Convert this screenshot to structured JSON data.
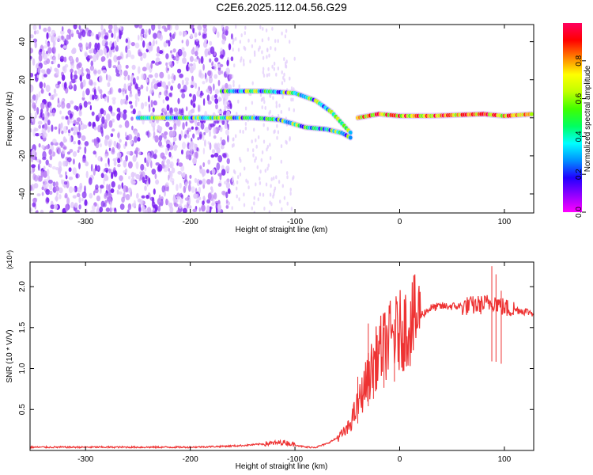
{
  "title": "C2E6.2025.112.04.56.G29",
  "chart_data": [
    {
      "type": "heatmap",
      "name": "spectrogram",
      "xlabel": "Height of straight line (km)",
      "ylabel": "Frequency (Hz)",
      "xlim": [
        -353,
        128
      ],
      "ylim": [
        -50,
        49
      ],
      "x_ticks": [
        -300,
        -200,
        -100,
        0,
        100
      ],
      "x_tick_labels": [
        "-300",
        "-200",
        "-100",
        "0",
        "100"
      ],
      "y_ticks": [
        -40,
        -20,
        0,
        20,
        40
      ],
      "y_tick_labels": [
        "-40",
        "-20",
        "0",
        "20",
        "40"
      ],
      "colorbar": {
        "label": "Normalized spectral amplitude",
        "range": [
          0,
          1
        ],
        "ticks": [
          0.0,
          0.2,
          0.4,
          0.6,
          0.8
        ],
        "tick_labels": [
          "0.0",
          "0.2",
          "0.4",
          "0.6",
          "0.8"
        ],
        "colors": [
          "#ff00ff",
          "#9000ff",
          "#2000ff",
          "#0090ff",
          "#00ffff",
          "#00ff60",
          "#40ff00",
          "#c0ff00",
          "#ffff00",
          "#ff8000",
          "#ff0000",
          "#ff0060"
        ]
      },
      "features": [
        {
          "name": "upper-branch",
          "points": [
            [
              -170,
              14
            ],
            [
              -130,
              14
            ],
            [
              -100,
              13
            ],
            [
              -80,
              9
            ],
            [
              -65,
              3
            ],
            [
              -55,
              -3
            ],
            [
              -45,
              -9
            ]
          ]
        },
        {
          "name": "lower-branch",
          "points": [
            [
              -250,
              0
            ],
            [
              -180,
              0
            ],
            [
              -140,
              0
            ],
            [
              -115,
              -1
            ],
            [
              -90,
              -5
            ],
            [
              -70,
              -6
            ],
            [
              -55,
              -8
            ],
            [
              -45,
              -11
            ]
          ]
        },
        {
          "name": "main-line",
          "points": [
            [
              -40,
              0
            ],
            [
              -20,
              2
            ],
            [
              0,
              1
            ],
            [
              30,
              1
            ],
            [
              80,
              2
            ],
            [
              100,
              1
            ],
            [
              128,
              2
            ]
          ]
        }
      ]
    },
    {
      "type": "line",
      "name": "snr",
      "xlabel": "Height of straight line (km)",
      "ylabel": "SNR (10 * V/V)",
      "y_multiplier": "(x10⁴)",
      "xlim": [
        -353,
        128
      ],
      "ylim": [
        0,
        2.3
      ],
      "x_ticks": [
        -300,
        -200,
        -100,
        0,
        100
      ],
      "x_tick_labels": [
        "-300",
        "-200",
        "-100",
        "0",
        "100"
      ],
      "y_ticks": [
        0.5,
        1.0,
        1.5,
        2.0
      ],
      "y_tick_labels": [
        "0.5",
        "1.0",
        "1.5",
        "2.0"
      ],
      "color": "#ee3333",
      "series": [
        {
          "name": "SNR",
          "x": [
            -353,
            -300,
            -250,
            -200,
            -170,
            -150,
            -130,
            -110,
            -100,
            -90,
            -80,
            -70,
            -60,
            -50,
            -40,
            -30,
            -20,
            -10,
            0,
            10,
            20,
            30,
            40,
            60,
            80,
            90,
            100,
            110,
            128
          ],
          "y": [
            0.04,
            0.04,
            0.04,
            0.04,
            0.05,
            0.06,
            0.08,
            0.1,
            0.07,
            0.04,
            0.04,
            0.08,
            0.15,
            0.25,
            0.55,
            0.9,
            1.2,
            1.35,
            1.45,
            1.55,
            1.65,
            1.74,
            1.76,
            1.76,
            1.78,
            1.82,
            1.74,
            1.72,
            1.68
          ]
        }
      ],
      "spikes": [
        [
          -40,
          0.9
        ],
        [
          -30,
          1.55
        ],
        [
          -25,
          1.25
        ],
        [
          -15,
          1.5
        ],
        [
          -5,
          1.6
        ],
        [
          88,
          2.25
        ],
        [
          92,
          2.15
        ],
        [
          97,
          1.95
        ]
      ]
    }
  ]
}
